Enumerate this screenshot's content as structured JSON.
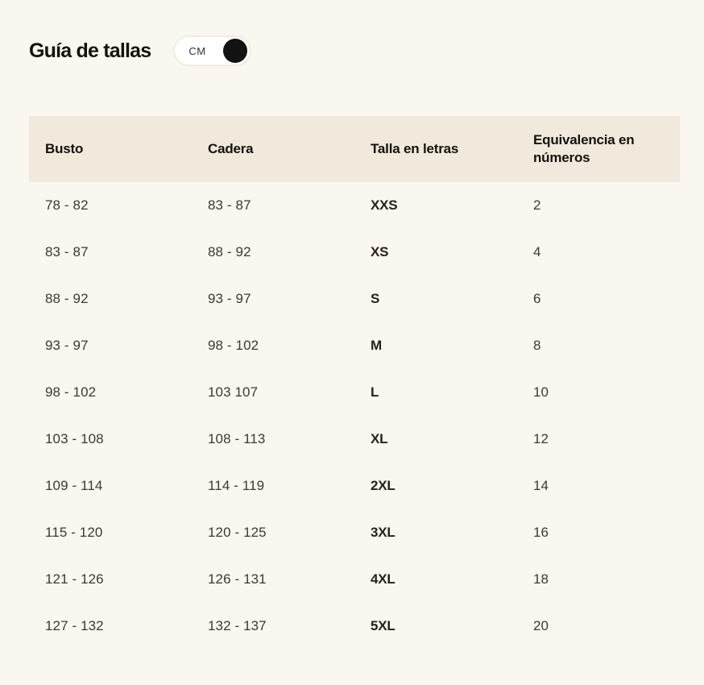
{
  "page": {
    "title": "Guía de tallas"
  },
  "unit_toggle": {
    "label": "CM",
    "state": "on"
  },
  "table": {
    "columns": [
      "Busto",
      "Cadera",
      "Talla en letras",
      "Equivalencia en números"
    ],
    "rows": [
      {
        "busto": "78 - 82",
        "cadera": "83 - 87",
        "talla": "XXS",
        "numero": "2"
      },
      {
        "busto": "83 - 87",
        "cadera": "88 - 92",
        "talla": "XS",
        "numero": "4"
      },
      {
        "busto": "88 - 92",
        "cadera": "93 - 97",
        "talla": "S",
        "numero": "6"
      },
      {
        "busto": "93 - 97",
        "cadera": "98 - 102",
        "talla": "M",
        "numero": "8"
      },
      {
        "busto": "98 - 102",
        "cadera": "103 107",
        "talla": "L",
        "numero": "10"
      },
      {
        "busto": "103 - 108",
        "cadera": "108 - 113",
        "talla": "XL",
        "numero": "12"
      },
      {
        "busto": "109 - 114",
        "cadera": "114 - 119",
        "talla": "2XL",
        "numero": "14"
      },
      {
        "busto": "115 - 120",
        "cadera": "120 - 125",
        "talla": "3XL",
        "numero": "16"
      },
      {
        "busto": "121 - 126",
        "cadera": "126 - 131",
        "talla": "4XL",
        "numero": "18"
      },
      {
        "busto": "127 - 132",
        "cadera": "132 - 137",
        "talla": "5XL",
        "numero": "20"
      }
    ]
  },
  "colors": {
    "page_background": "#faf6f0",
    "header_row_background": "#f0e9dc",
    "toggle_background": "#ffffff",
    "toggle_border": "#f3ecdd",
    "toggle_knob": "#121212",
    "title_text": "#15120b",
    "body_text": "#3d3832"
  }
}
